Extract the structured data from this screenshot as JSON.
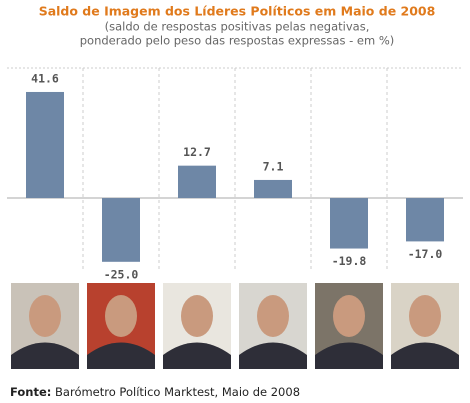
{
  "chart_data": {
    "type": "bar",
    "title": "Saldo de Imagem dos Líderes Políticos em Maio de 2008",
    "subtitle": [
      "(saldo de respostas positivas pelas negativas,",
      "ponderado pelo peso das respostas expressas - em %)"
    ],
    "values": [
      41.6,
      -25.0,
      12.7,
      7.1,
      -19.8,
      -17.0
    ],
    "value_labels": [
      "41.6",
      "-25.0",
      "12.7",
      "7.1",
      "-19.8",
      "-17.0"
    ],
    "color": "#6e87a6",
    "ylim": [
      -29,
      51
    ],
    "source_label": "Fonte:",
    "source": "Barómetro Político Marktest, Maio de 2008"
  }
}
